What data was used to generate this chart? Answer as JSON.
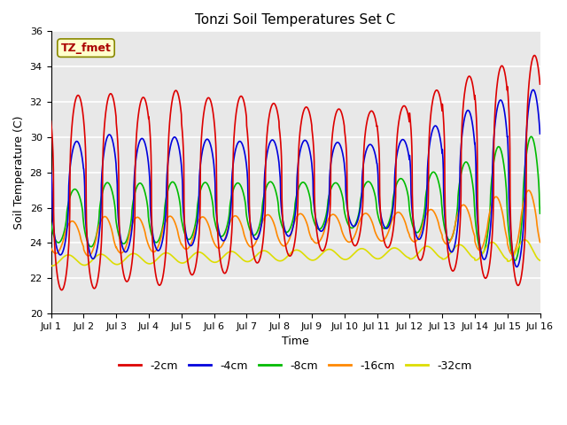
{
  "title": "Tonzi Soil Temperatures Set C",
  "xlabel": "Time",
  "ylabel": "Soil Temperature (C)",
  "xlim": [
    0,
    15
  ],
  "ylim": [
    20,
    36
  ],
  "yticks": [
    20,
    22,
    24,
    26,
    28,
    30,
    32,
    34,
    36
  ],
  "xtick_labels": [
    "Jul 1",
    "Jul 2",
    "Jul 3",
    "Jul 4",
    "Jul 5",
    "Jul 6",
    "Jul 7",
    "Jul 8",
    "Jul 9",
    "Jul 10",
    "Jul 11",
    "Jul 12",
    "Jul 13",
    "Jul 14",
    "Jul 15",
    "Jul 16"
  ],
  "xtick_positions": [
    0,
    1,
    2,
    3,
    4,
    5,
    6,
    7,
    8,
    9,
    10,
    11,
    12,
    13,
    14,
    15
  ],
  "series": {
    "-2cm": {
      "color": "#dd0000",
      "lw": 1.2
    },
    "-4cm": {
      "color": "#0000dd",
      "lw": 1.2
    },
    "-8cm": {
      "color": "#00bb00",
      "lw": 1.2
    },
    "-16cm": {
      "color": "#ff8800",
      "lw": 1.2
    },
    "-32cm": {
      "color": "#dddd00",
      "lw": 1.2
    }
  },
  "annotation_text": "TZ_fmet",
  "bg_color": "#e8e8e8",
  "grid_color": "white",
  "n_points": 2000
}
